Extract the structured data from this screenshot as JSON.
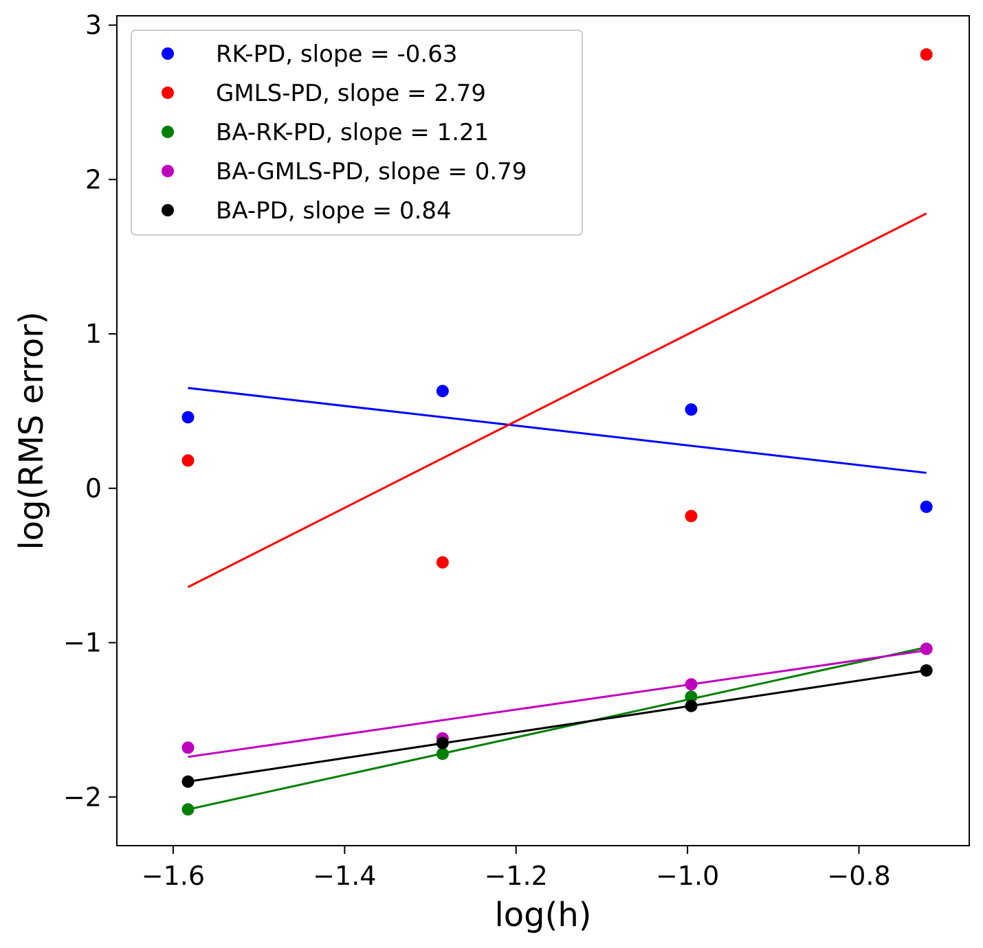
{
  "chart_data": {
    "type": "scatter",
    "title": "",
    "xlabel": "log(h)",
    "ylabel": "log(RMS error)",
    "xlim": [
      -1.6657,
      -0.6713
    ],
    "ylim": [
      -2.3148,
      3.0604
    ],
    "xticks": [
      -1.6,
      -1.4,
      -1.2,
      -1.0,
      -0.8
    ],
    "xtick_labels": [
      "−1.6",
      "−1.4",
      "−1.2",
      "−1.0",
      "−0.8"
    ],
    "yticks": [
      -2,
      -1,
      0,
      1,
      2,
      3
    ],
    "ytick_labels": [
      "−2",
      "−1",
      "0",
      "1",
      "2",
      "3"
    ],
    "grid": false,
    "legend_position": "top-left",
    "x": [
      -1.5827,
      -1.2857,
      -0.9957,
      -0.7213
    ],
    "series": [
      {
        "name": "RK-PD, slope = -0.63",
        "color": "#0000ff",
        "values": [
          0.46,
          0.63,
          0.51,
          -0.12
        ],
        "fit": [
          0.65,
          0.1
        ]
      },
      {
        "name": "GMLS-PD, slope = 2.79",
        "color": "#ff0000",
        "values": [
          0.18,
          -0.48,
          -0.18,
          2.81
        ],
        "fit": [
          -0.64,
          1.78
        ]
      },
      {
        "name": "BA-RK-PD, slope = 1.21",
        "color": "#008000",
        "values": [
          -2.08,
          -1.72,
          -1.35,
          -1.04
        ],
        "fit": [
          -2.08,
          -1.03
        ]
      },
      {
        "name": "BA-GMLS-PD, slope = 0.79",
        "color": "#bf00bf",
        "values": [
          -1.68,
          -1.62,
          -1.27,
          -1.04
        ],
        "fit": [
          -1.74,
          -1.05
        ]
      },
      {
        "name": "BA-PD, slope = 0.84",
        "color": "#000000",
        "values": [
          -1.9,
          -1.65,
          -1.41,
          -1.18
        ],
        "fit": [
          -1.9,
          -1.18
        ]
      }
    ]
  }
}
